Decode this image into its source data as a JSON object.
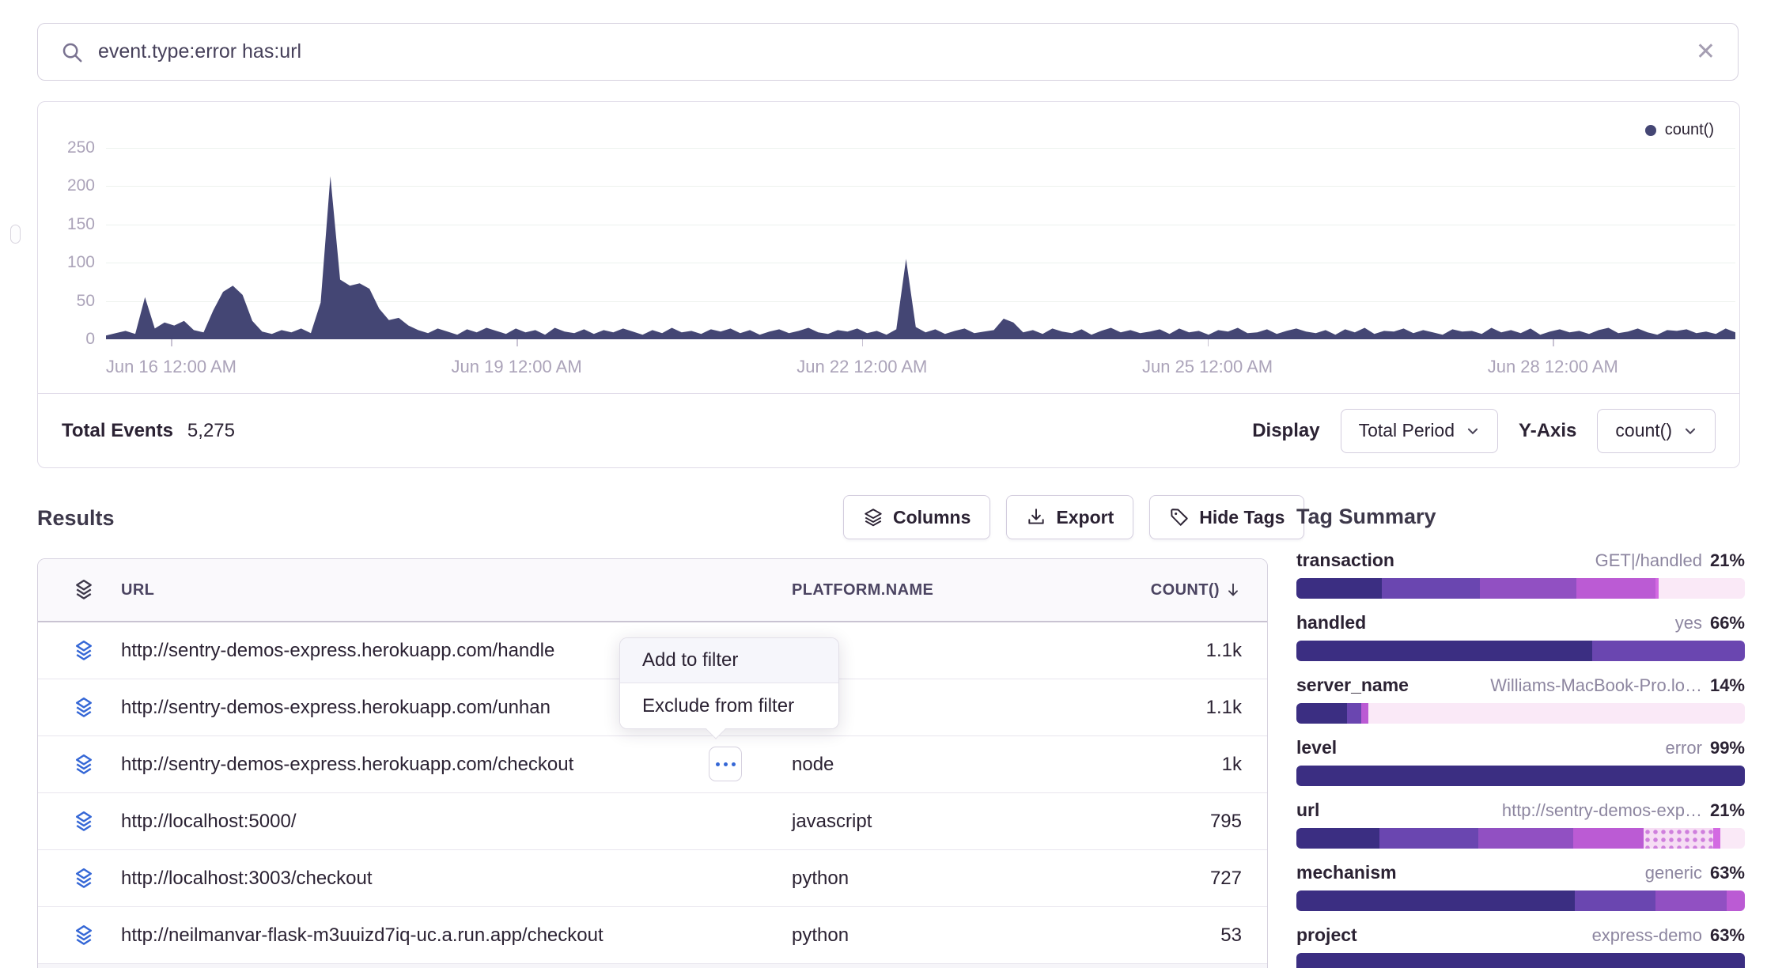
{
  "search": {
    "value": "event.type:error has:url"
  },
  "chart_panel": {
    "legend": "count()",
    "total_events_label": "Total Events",
    "total_events_value": "5,275",
    "display_label": "Display",
    "display_value": "Total Period",
    "yaxis_label": "Y-Axis",
    "yaxis_value": "count()"
  },
  "chart_data": {
    "type": "area",
    "title": "count() over time",
    "series_name": "count()",
    "color": "#444674",
    "ylim": [
      0,
      250
    ],
    "yticks": [
      0,
      50,
      100,
      150,
      200,
      250
    ],
    "xticks": [
      {
        "f": 0.04,
        "label": "Jun 16 12:00 AM"
      },
      {
        "f": 0.252,
        "label": "Jun 19 12:00 AM"
      },
      {
        "f": 0.464,
        "label": "Jun 22 12:00 AM"
      },
      {
        "f": 0.676,
        "label": "Jun 25 12:00 AM"
      },
      {
        "f": 0.888,
        "label": "Jun 28 12:00 AM"
      }
    ],
    "values": [
      5,
      8,
      11,
      7,
      55,
      14,
      22,
      18,
      24,
      12,
      9,
      38,
      62,
      70,
      58,
      24,
      10,
      7,
      12,
      9,
      14,
      8,
      48,
      213,
      78,
      70,
      73,
      66,
      40,
      25,
      28,
      18,
      12,
      8,
      14,
      10,
      6,
      13,
      9,
      15,
      11,
      7,
      14,
      9,
      12,
      6,
      15,
      10,
      8,
      13,
      7,
      12,
      9,
      14,
      10,
      6,
      12,
      8,
      15,
      9,
      11,
      7,
      13,
      10,
      14,
      8,
      12,
      6,
      10,
      13,
      8,
      11,
      15,
      9,
      7,
      12,
      10,
      14,
      8,
      11,
      6,
      13,
      105,
      16,
      9,
      13,
      7,
      11,
      14,
      8,
      10,
      12,
      27,
      22,
      9,
      12,
      7,
      14,
      10,
      8,
      13,
      6,
      11,
      15,
      9,
      12,
      8,
      10,
      13,
      7,
      14,
      9,
      11,
      6,
      12,
      10,
      15,
      8,
      9,
      13,
      7,
      11,
      14,
      10,
      8,
      12,
      6,
      13,
      9,
      15,
      7,
      11,
      10,
      14,
      8,
      12,
      9,
      6,
      13,
      10,
      11,
      7,
      15,
      9,
      12,
      8,
      14,
      6,
      10,
      13,
      9,
      11,
      7,
      12,
      15,
      8,
      10,
      14,
      9,
      6,
      12,
      11,
      13,
      8,
      10,
      7,
      14,
      9
    ]
  },
  "results": {
    "heading": "Results",
    "buttons": {
      "columns": "Columns",
      "export": "Export",
      "hide_tags": "Hide Tags"
    },
    "table": {
      "columns": {
        "url": "URL",
        "platform": "PLATFORM.NAME",
        "count": "COUNT()"
      },
      "rows": [
        {
          "url": "http://sentry-demos-express.herokuapp.com/handle",
          "platform": "",
          "count": "1.1k",
          "more": false
        },
        {
          "url": "http://sentry-demos-express.herokuapp.com/unhan",
          "platform": "",
          "count": "1.1k",
          "more": false
        },
        {
          "url": "http://sentry-demos-express.herokuapp.com/checkout",
          "platform": "node",
          "count": "1k",
          "more": true
        },
        {
          "url": "http://localhost:5000/",
          "platform": "javascript",
          "count": "795",
          "more": false
        },
        {
          "url": "http://localhost:3003/checkout",
          "platform": "python",
          "count": "727",
          "more": false
        },
        {
          "url": "http://neilmanvar-flask-m3uuizd7iq-uc.a.run.app/checkout",
          "platform": "python",
          "count": "53",
          "more": false
        }
      ]
    }
  },
  "context_menu": {
    "items": [
      "Add to filter",
      "Exclude from filter"
    ]
  },
  "tag_summary": {
    "heading": "Tag Summary",
    "palette": {
      "p1": "#3B2E82",
      "p2": "#6A46B0",
      "p3": "#9150C2",
      "p4": "#BB5BD4",
      "p5": "#D36AE2",
      "p6": "#FAE9F7"
    },
    "items": [
      {
        "name": "transaction",
        "value": "GET|/handled",
        "pct": "21%",
        "segments": [
          [
            "p1",
            19
          ],
          [
            "p2",
            22
          ],
          [
            "p3",
            21.5
          ],
          [
            "p4",
            17.5
          ],
          [
            "p5",
            0.8
          ],
          [
            "p6",
            19.2
          ]
        ]
      },
      {
        "name": "handled",
        "value": "yes",
        "pct": "66%",
        "segments": [
          [
            "p1",
            66
          ],
          [
            "p2",
            34
          ]
        ]
      },
      {
        "name": "server_name",
        "value": "Williams-MacBook-Pro.lo…",
        "pct": "14%",
        "segments": [
          [
            "p1",
            11.3
          ],
          [
            "p2",
            3.2
          ],
          [
            "p4",
            1.5
          ],
          [
            "p6",
            84
          ]
        ]
      },
      {
        "name": "level",
        "value": "error",
        "pct": "99%",
        "segments": [
          [
            "p1",
            100
          ]
        ]
      },
      {
        "name": "url",
        "value": "http://sentry-demos-exp…",
        "pct": "21%",
        "segments": [
          [
            "p1",
            18.6
          ],
          [
            "p2",
            22
          ],
          [
            "p3",
            21.2
          ],
          [
            "p4",
            15.7
          ],
          [
            "dots",
            15.5
          ],
          [
            "p5",
            1.5
          ],
          [
            "p6",
            5.5
          ]
        ]
      },
      {
        "name": "mechanism",
        "value": "generic",
        "pct": "63%",
        "segments": [
          [
            "p1",
            62
          ],
          [
            "p2",
            18
          ],
          [
            "p3",
            16
          ],
          [
            "p4",
            4
          ]
        ]
      },
      {
        "name": "project",
        "value": "express-demo",
        "pct": "63%",
        "segments": [
          [
            "p1",
            100
          ]
        ]
      }
    ]
  }
}
